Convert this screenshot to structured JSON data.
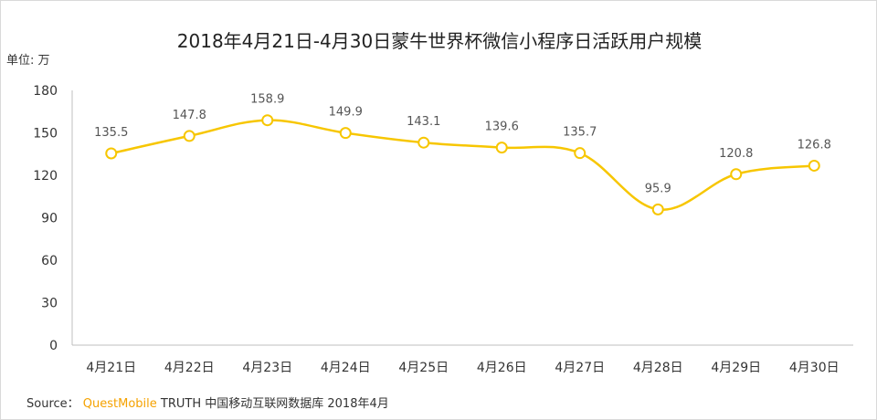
{
  "chart_data": {
    "type": "line",
    "title": "2018年4月21日-4月30日蒙牛世界杯微信小程序日活跃用户规模",
    "unit_label": "单位: 万",
    "categories": [
      "4月21日",
      "4月22日",
      "4月23日",
      "4月24日",
      "4月25日",
      "4月26日",
      "4月27日",
      "4月28日",
      "4月29日",
      "4月30日"
    ],
    "values": [
      135.5,
      147.8,
      158.9,
      149.9,
      143.1,
      139.6,
      135.7,
      95.9,
      120.8,
      126.8
    ],
    "value_labels": [
      "135.5",
      "147.8",
      "158.9",
      "149.9",
      "143.1",
      "139.6",
      "135.7",
      "95.9",
      "120.8",
      "126.8"
    ],
    "ylim": [
      0,
      180
    ],
    "yticks": [
      "0",
      "30",
      "60",
      "90",
      "120",
      "150",
      "180"
    ],
    "grid": false,
    "line_color": "#f7c600",
    "marker_fill": "#ffffff"
  },
  "source": {
    "label": "Source：",
    "brand": "QuestMobile",
    "text": " TRUTH 中国移动互联网数据库 2018年4月"
  }
}
